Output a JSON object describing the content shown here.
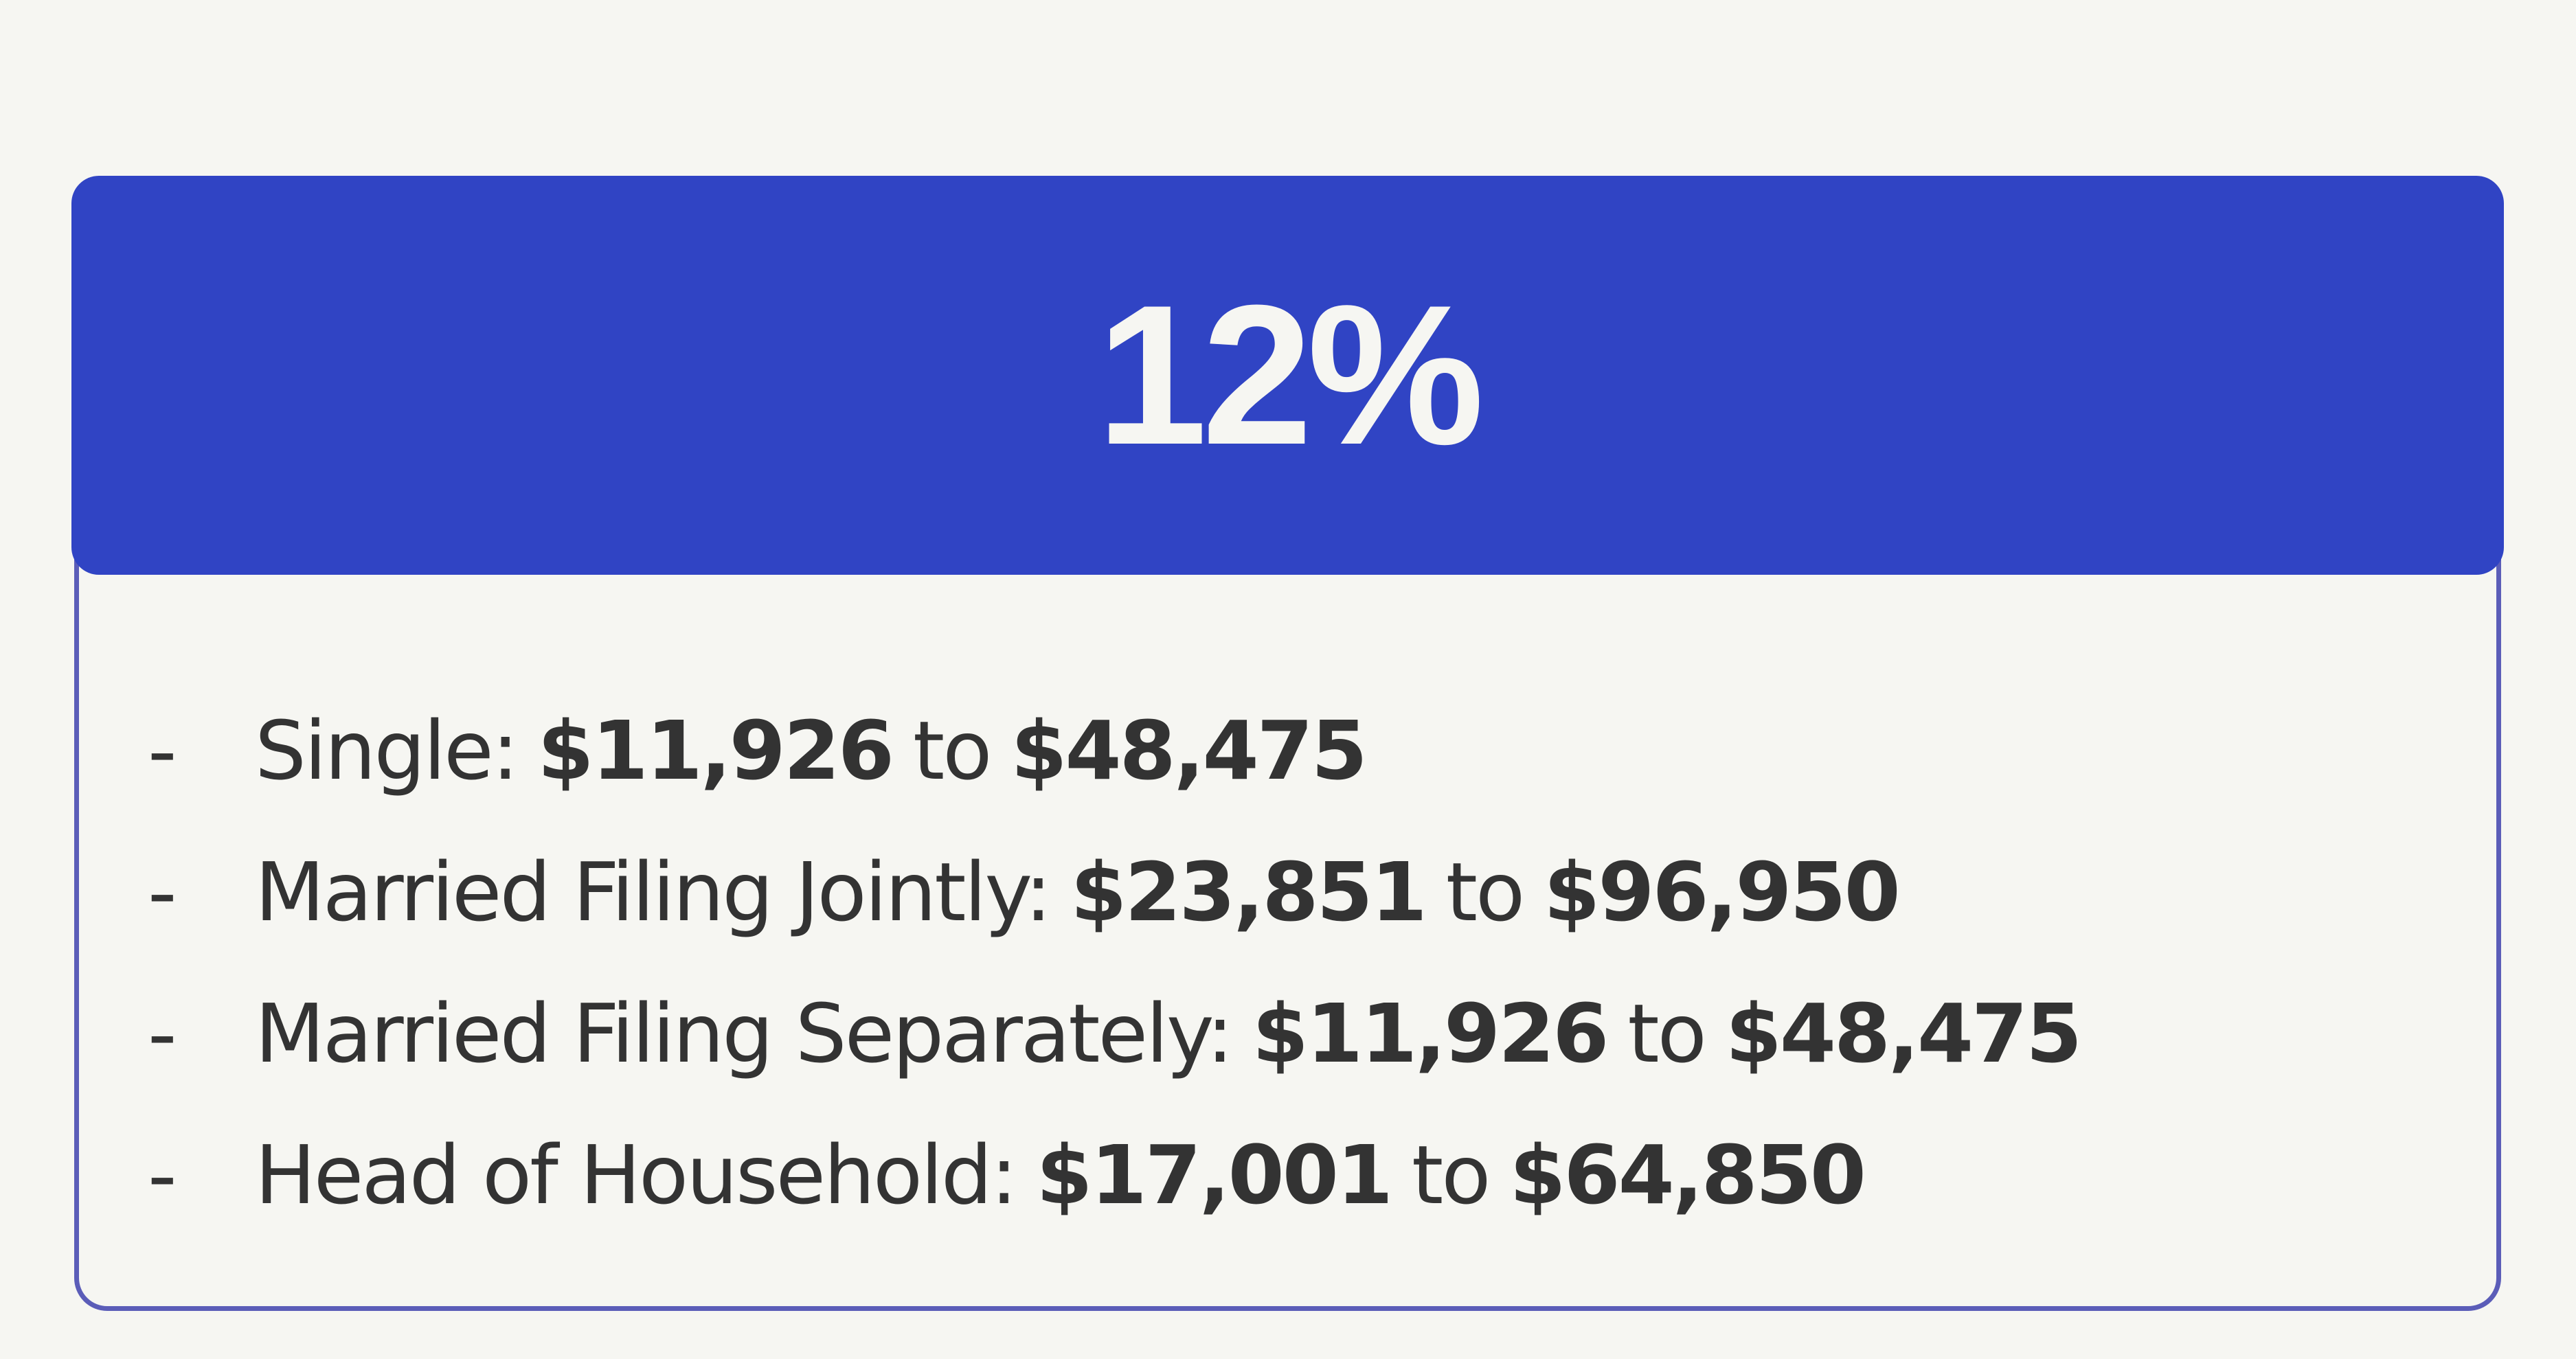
{
  "header": {
    "title": "12%"
  },
  "list": {
    "marker": "-",
    "connector": "to",
    "items": [
      {
        "label": "Single:",
        "from": "$11,926",
        "to": "$48,475"
      },
      {
        "label": "Married Filing Jointly:",
        "from": "$23,851",
        "to": "$96,950"
      },
      {
        "label": "Married Filing Separately:",
        "from": "$11,926",
        "to": "$48,475"
      },
      {
        "label": "Head of Household:",
        "from": "$17,001",
        "to": "$64,850"
      }
    ]
  }
}
